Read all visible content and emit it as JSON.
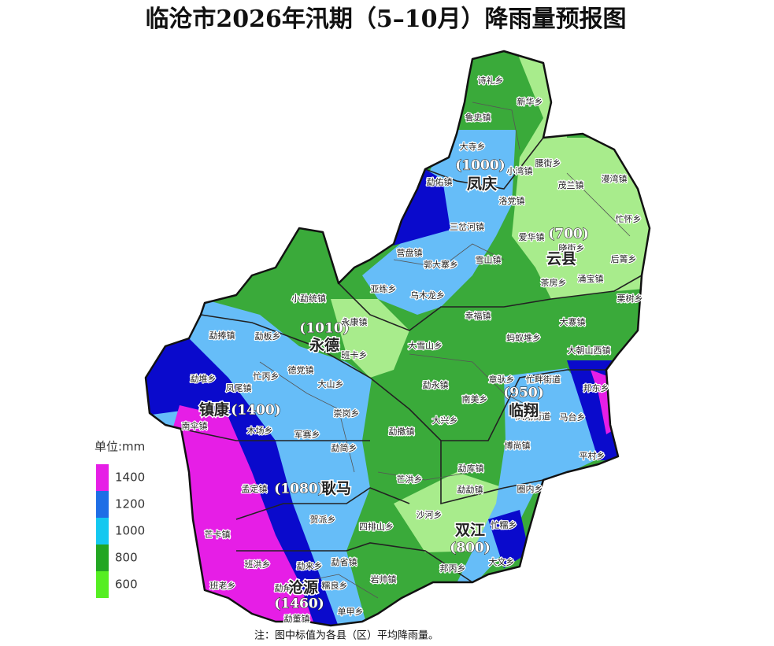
{
  "header": {
    "title": "临沧市2026年汛期（5–10月）降雨量预报图"
  },
  "legend": {
    "unit": "单位:mm",
    "items": [
      {
        "label": "1400",
        "color": "#e61ee6"
      },
      {
        "label": "1200",
        "color": "#1e6ee6"
      },
      {
        "label": "1000",
        "color": "#14c8f0"
      },
      {
        "label": "800",
        "color": "#22a622"
      },
      {
        "label": "600",
        "color": "#55ee22"
      }
    ]
  },
  "counties": [
    {
      "name": "凤庆",
      "value": "(1000)"
    },
    {
      "name": "云县",
      "value": "(700)"
    },
    {
      "name": "永德",
      "value": "(1010)"
    },
    {
      "name": "镇康",
      "value": "(1400)"
    },
    {
      "name": "耿马",
      "value": "(1080)"
    },
    {
      "name": "临翔",
      "value": "(950)"
    },
    {
      "name": "双江",
      "value": "(800)"
    },
    {
      "name": "沧源",
      "value": "(1460)"
    }
  ],
  "towns": [
    "诗礼乡",
    "新华乡",
    "鲁史镇",
    "大寺乡",
    "腰街乡",
    "小湾镇",
    "茂兰镇",
    "勐佑镇",
    "漫湾镇",
    "洛党镇",
    "忙怀乡",
    "三岔河镇",
    "爱华镇",
    "晓街乡",
    "营盘镇",
    "后箐乡",
    "郭大寨乡",
    "雪山镇",
    "涌宝镇",
    "茶房乡",
    "亚练乡",
    "乌木龙乡",
    "栗树乡",
    "小勐统镇",
    "幸福镇",
    "大寨镇",
    "永康镇",
    "勐捧镇",
    "勐板乡",
    "蚂蚁堆乡",
    "大雪山乡",
    "大朝山西镇",
    "班卡乡",
    "德党镇",
    "忙丙乡",
    "勐堆乡",
    "章驮乡",
    "忙畔街道",
    "邦东乡",
    "勐永镇",
    "大山乡",
    "凤尾镇",
    "南美乡",
    "崇岗乡",
    "凤翔街道",
    "马台乡",
    "南伞镇",
    "木场乡",
    "大兴乡",
    "军赛乡",
    "勐撒镇",
    "博尚镇",
    "勐简乡",
    "平村乡",
    "勐库镇",
    "芒洪乡",
    "孟定镇",
    "勐勐镇",
    "圈内乡",
    "四排山乡",
    "沙河乡",
    "贺派乡",
    "忙糯乡",
    "芒卡镇",
    "勐省镇",
    "勐来乡",
    "班洪乡",
    "大文乡",
    "邦丙乡",
    "岩帅镇",
    "班老乡",
    "勐角乡",
    "糯良乡",
    "单甲乡",
    "勐董镇"
  ],
  "note": "注：图中标值为各县（区）平均降雨量。"
}
